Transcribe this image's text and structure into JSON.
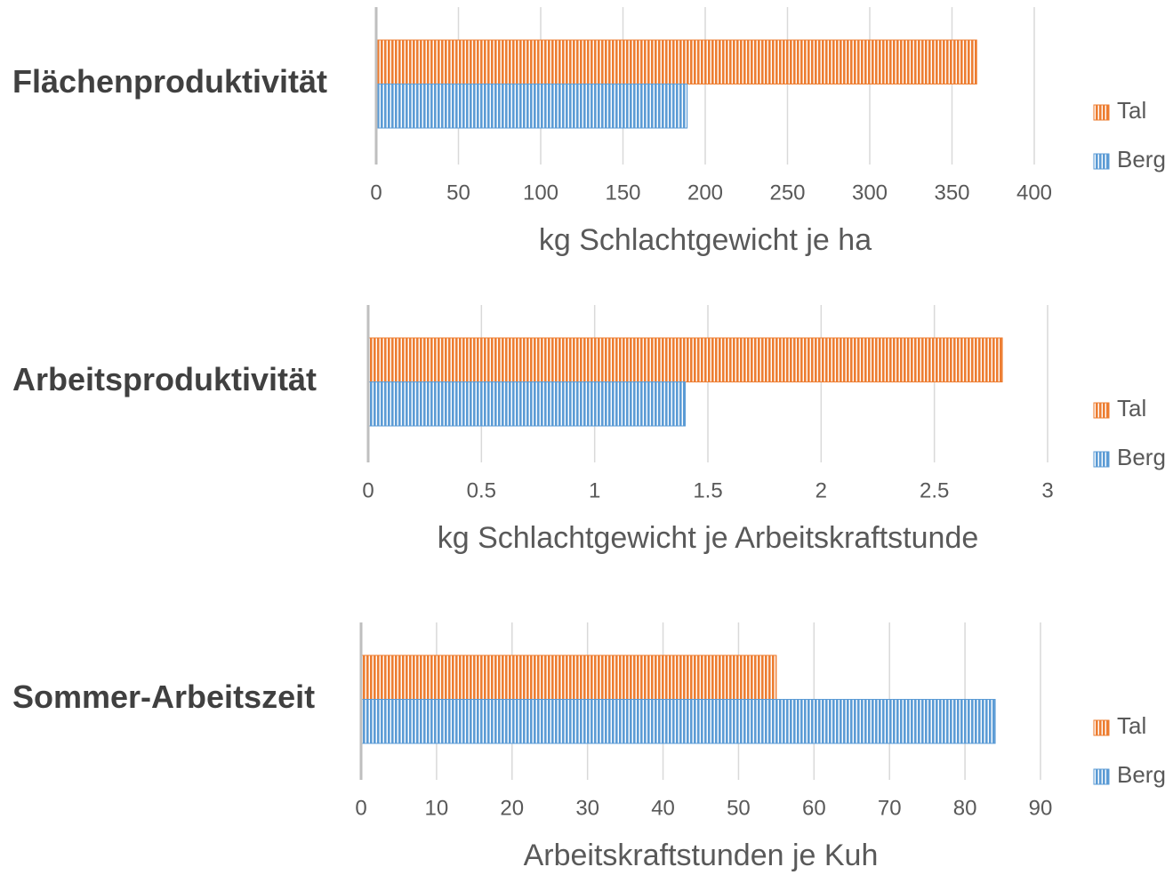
{
  "chart_data": [
    {
      "type": "bar",
      "categories": [
        "Flächenproduktivität"
      ],
      "series": [
        {
          "name": "Tal",
          "color": "#ed7d31",
          "values": [
            365
          ]
        },
        {
          "name": "Berg",
          "color": "#5b9bd5",
          "values": [
            189
          ]
        }
      ],
      "xlim": [
        0,
        400
      ],
      "xticks": [
        0,
        50,
        100,
        150,
        200,
        250,
        300,
        350,
        400
      ],
      "xlabel": "kg Schlachtgewicht je ha",
      "grid": true,
      "legend": "right"
    },
    {
      "type": "bar",
      "categories": [
        "Arbeitsproduktivität"
      ],
      "series": [
        {
          "name": "Tal",
          "color": "#ed7d31",
          "values": [
            2.8
          ]
        },
        {
          "name": "Berg",
          "color": "#5b9bd5",
          "values": [
            1.4
          ]
        }
      ],
      "xlim": [
        0,
        3
      ],
      "xticks": [
        0,
        0.5,
        1,
        1.5,
        2,
        2.5,
        3
      ],
      "xlabel": "kg Schlachtgewicht je Arbeitskraftstunde",
      "grid": true,
      "legend": "right"
    },
    {
      "type": "bar",
      "categories": [
        "Sommer-Arbeitszeit"
      ],
      "series": [
        {
          "name": "Tal",
          "color": "#ed7d31",
          "values": [
            55
          ]
        },
        {
          "name": "Berg",
          "color": "#5b9bd5",
          "values": [
            84
          ]
        }
      ],
      "xlim": [
        0,
        90
      ],
      "xticks": [
        0,
        10,
        20,
        30,
        40,
        50,
        60,
        70,
        80,
        90
      ],
      "xlabel": "Arbeitskraftstunden je Kuh",
      "grid": true,
      "legend": "right"
    }
  ]
}
